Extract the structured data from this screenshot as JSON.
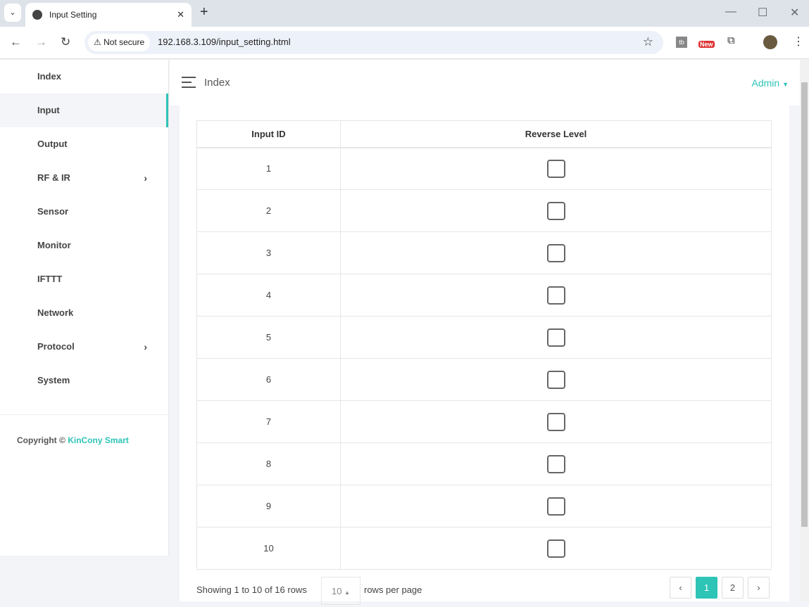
{
  "browser": {
    "tab_title": "Input Setting",
    "security": "Not secure",
    "url": "192.168.3.109/input_setting.html",
    "ext_badge": "New"
  },
  "sidebar": {
    "items": [
      {
        "label": "Index"
      },
      {
        "label": "Input",
        "active": true
      },
      {
        "label": "Output"
      },
      {
        "label": "RF & IR",
        "submenu": true
      },
      {
        "label": "Sensor"
      },
      {
        "label": "Monitor"
      },
      {
        "label": "IFTTT"
      },
      {
        "label": "Network"
      },
      {
        "label": "Protocol",
        "submenu": true
      },
      {
        "label": "System"
      }
    ],
    "copyright": "Copyright ©",
    "brand": "KinCony Smart"
  },
  "header": {
    "title": "Index",
    "user": "Admin"
  },
  "table": {
    "columns": [
      "Input ID",
      "Reverse Level"
    ],
    "rows": [
      {
        "id": "1",
        "checked": false
      },
      {
        "id": "2",
        "checked": false
      },
      {
        "id": "3",
        "checked": false
      },
      {
        "id": "4",
        "checked": false
      },
      {
        "id": "5",
        "checked": false
      },
      {
        "id": "6",
        "checked": false
      },
      {
        "id": "7",
        "checked": false
      },
      {
        "id": "8",
        "checked": false
      },
      {
        "id": "9",
        "checked": false
      },
      {
        "id": "10",
        "checked": false
      }
    ]
  },
  "pagination": {
    "showing": "Showing 1 to 10 of 16 rows",
    "page_size": "10",
    "rows_per_page": "rows per page",
    "prev": "‹",
    "pages": [
      "1",
      "2"
    ],
    "current": "1",
    "next": "›"
  },
  "colors": {
    "accent": "#2ec4b6"
  }
}
